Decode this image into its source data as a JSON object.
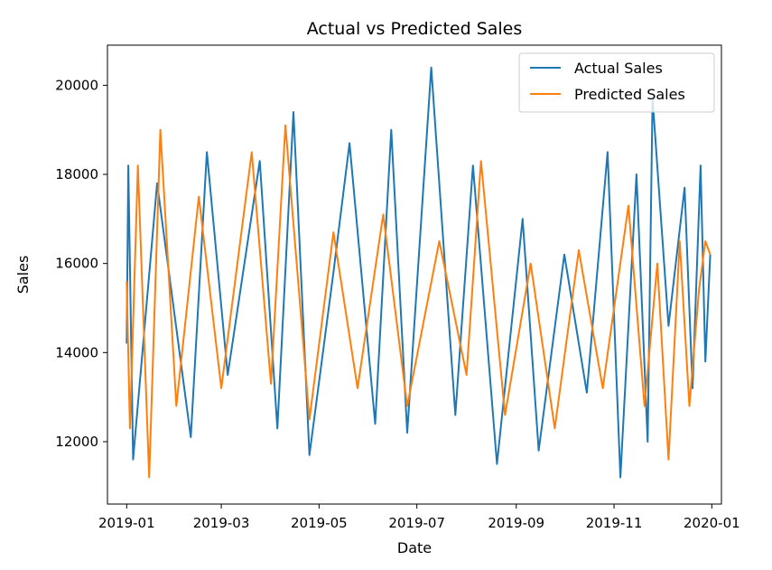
{
  "chart_data": {
    "type": "line",
    "title": "Actual vs Predicted Sales",
    "xlabel": "Date",
    "ylabel": "Sales",
    "xlim": [
      "2018-12-20",
      "2020-01-07"
    ],
    "ylim": [
      10600,
      20900
    ],
    "x_ticks": [
      "2019-01",
      "2019-03",
      "2019-05",
      "2019-07",
      "2019-09",
      "2019-11",
      "2020-01"
    ],
    "y_ticks": [
      12000,
      14000,
      16000,
      18000,
      20000
    ],
    "grid": false,
    "legend_position": "top-right",
    "series": [
      {
        "name": "Actual Sales",
        "color": "#1f77b4",
        "points": [
          [
            "2019-01-01",
            14200
          ],
          [
            "2019-01-02",
            18200
          ],
          [
            "2019-01-05",
            11600
          ],
          [
            "2019-01-20",
            17800
          ],
          [
            "2019-02-10",
            12100
          ],
          [
            "2019-02-20",
            18500
          ],
          [
            "2019-03-05",
            13500
          ],
          [
            "2019-03-25",
            18300
          ],
          [
            "2019-04-05",
            12300
          ],
          [
            "2019-04-15",
            19400
          ],
          [
            "2019-04-25",
            11700
          ],
          [
            "2019-05-10",
            15800
          ],
          [
            "2019-05-20",
            18700
          ],
          [
            "2019-06-05",
            12400
          ],
          [
            "2019-06-15",
            19000
          ],
          [
            "2019-06-25",
            12200
          ],
          [
            "2019-07-10",
            20400
          ],
          [
            "2019-07-25",
            12600
          ],
          [
            "2019-08-05",
            18200
          ],
          [
            "2019-08-20",
            11500
          ],
          [
            "2019-09-05",
            17000
          ],
          [
            "2019-09-15",
            11800
          ],
          [
            "2019-10-01",
            16200
          ],
          [
            "2019-10-15",
            13100
          ],
          [
            "2019-10-28",
            18500
          ],
          [
            "2019-11-05",
            11200
          ],
          [
            "2019-11-15",
            18000
          ],
          [
            "2019-11-22",
            12000
          ],
          [
            "2019-11-25",
            19700
          ],
          [
            "2019-12-05",
            14600
          ],
          [
            "2019-12-15",
            17700
          ],
          [
            "2019-12-20",
            13200
          ],
          [
            "2019-12-25",
            18200
          ],
          [
            "2019-12-28",
            13800
          ],
          [
            "2019-12-31",
            16200
          ]
        ]
      },
      {
        "name": "Predicted Sales",
        "color": "#ff7f0e",
        "points": [
          [
            "2019-01-01",
            15600
          ],
          [
            "2019-01-03",
            12300
          ],
          [
            "2019-01-08",
            18200
          ],
          [
            "2019-01-15",
            11200
          ],
          [
            "2019-01-22",
            19000
          ],
          [
            "2019-02-01",
            12800
          ],
          [
            "2019-02-15",
            17500
          ],
          [
            "2019-03-01",
            13200
          ],
          [
            "2019-03-20",
            18500
          ],
          [
            "2019-04-01",
            13300
          ],
          [
            "2019-04-10",
            19100
          ],
          [
            "2019-04-25",
            12500
          ],
          [
            "2019-05-10",
            16700
          ],
          [
            "2019-05-25",
            13200
          ],
          [
            "2019-06-10",
            17100
          ],
          [
            "2019-06-25",
            12800
          ],
          [
            "2019-07-15",
            16500
          ],
          [
            "2019-08-01",
            13500
          ],
          [
            "2019-08-10",
            18300
          ],
          [
            "2019-08-25",
            12600
          ],
          [
            "2019-09-10",
            16000
          ],
          [
            "2019-09-25",
            12300
          ],
          [
            "2019-10-10",
            16300
          ],
          [
            "2019-10-25",
            13200
          ],
          [
            "2019-11-10",
            17300
          ],
          [
            "2019-11-20",
            12800
          ],
          [
            "2019-11-28",
            16000
          ],
          [
            "2019-12-05",
            11600
          ],
          [
            "2019-12-12",
            16500
          ],
          [
            "2019-12-18",
            12800
          ],
          [
            "2019-12-24",
            15400
          ],
          [
            "2019-12-28",
            16500
          ],
          [
            "2019-12-31",
            16200
          ]
        ]
      }
    ]
  }
}
